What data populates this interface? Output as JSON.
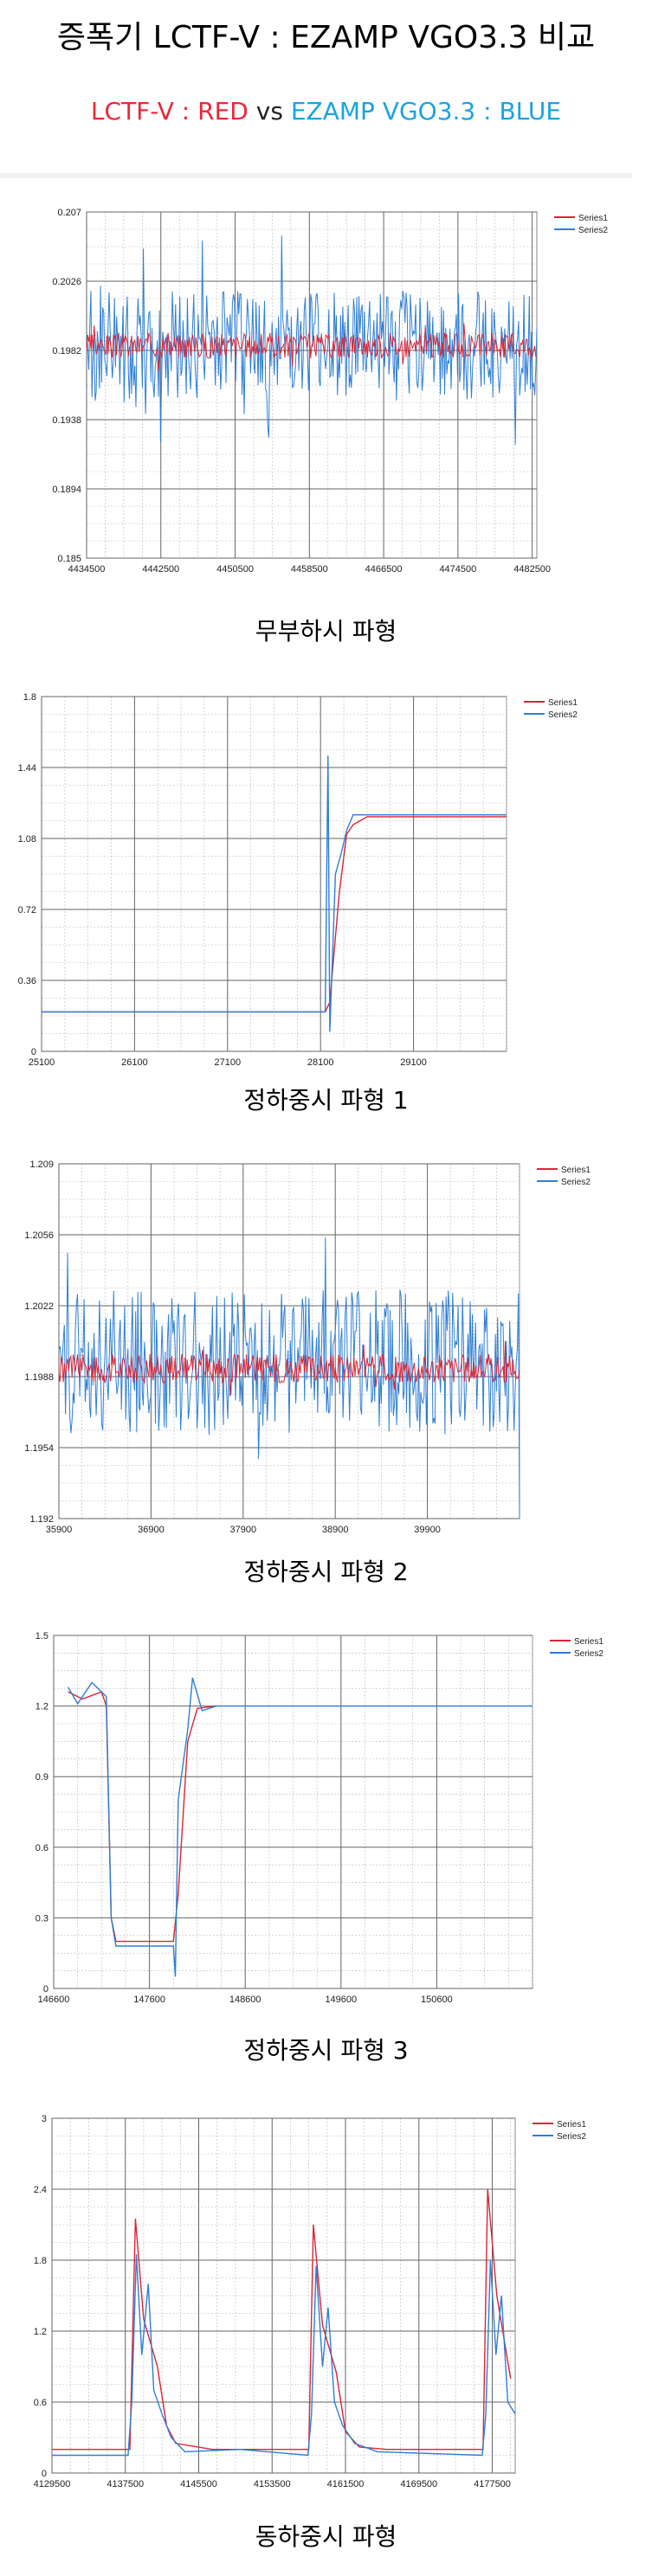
{
  "title": "증폭기 LCTF-V : EZAMP VGO3.3 비교",
  "legend_line": {
    "red_label": "LCTF-V : RED",
    "vs": "vs",
    "blue_label": "EZAMP VGO3.3 : BLUE"
  },
  "colors": {
    "series1": "#dc2434",
    "series2": "#2e7fd6",
    "grid": "#b9b9b9",
    "grid_major": "#666666"
  },
  "charts": [
    {
      "caption": "무부하시 파형",
      "chart_data": {
        "type": "line",
        "legend": [
          "Series1",
          "Series2"
        ],
        "legend_position": "top-right",
        "yticks": [
          "0.207",
          "0.2026",
          "0.1982",
          "0.1938",
          "0.1894",
          "0.185"
        ],
        "xticks": [
          "4434500",
          "4442500",
          "4450500",
          "4458500",
          "4466500",
          "4474500",
          "4482500"
        ],
        "xlim": [
          4434500,
          4483000
        ],
        "ylim": [
          0.185,
          0.207
        ],
        "series": [
          {
            "name": "Series1",
            "kind": "noise",
            "base": 0.1985,
            "amp": 0.0008
          },
          {
            "name": "Series2",
            "kind": "noise",
            "base": 0.1985,
            "amp": 0.0035
          }
        ]
      }
    },
    {
      "caption": "정하중시 파형 1",
      "chart_data": {
        "type": "line",
        "legend": [
          "Series1",
          "Series2"
        ],
        "legend_position": "top-right",
        "yticks": [
          "1.8",
          "1.44",
          "1.08",
          "0.72",
          "0.36",
          "0"
        ],
        "xticks": [
          "25100",
          "26100",
          "27100",
          "28100",
          "29100"
        ],
        "xlim": [
          25100,
          30100
        ],
        "ylim": [
          0,
          1.8
        ],
        "series": [
          {
            "name": "Series1",
            "kind": "path",
            "points": [
              [
                25100,
                0.2
              ],
              [
                28150,
                0.2
              ],
              [
                28200,
                0.25
              ],
              [
                28300,
                0.8
              ],
              [
                28380,
                1.1
              ],
              [
                28450,
                1.15
              ],
              [
                28600,
                1.19
              ],
              [
                30100,
                1.19
              ]
            ]
          },
          {
            "name": "Series2",
            "kind": "path",
            "points": [
              [
                25100,
                0.2
              ],
              [
                28150,
                0.2
              ],
              [
                28180,
                1.5
              ],
              [
                28200,
                0.1
              ],
              [
                28260,
                0.9
              ],
              [
                28320,
                1.0
              ],
              [
                28380,
                1.12
              ],
              [
                28450,
                1.2
              ],
              [
                28600,
                1.2
              ],
              [
                30100,
                1.2
              ]
            ]
          }
        ]
      }
    },
    {
      "caption": "정하중시 파형 2",
      "chart_data": {
        "type": "line",
        "legend": [
          "Series1",
          "Series2"
        ],
        "legend_position": "top-right",
        "yticks": [
          "1.209",
          "1.2056",
          "1.2022",
          "1.1988",
          "1.1954",
          "1.192"
        ],
        "xticks": [
          "35900",
          "36900",
          "37900",
          "38900",
          "39900"
        ],
        "xlim": [
          35900,
          40900
        ],
        "ylim": [
          1.192,
          1.209
        ],
        "series": [
          {
            "name": "Series1",
            "kind": "noise",
            "base": 1.1992,
            "amp": 0.0007
          },
          {
            "name": "Series2",
            "kind": "noise",
            "base": 1.1995,
            "amp": 0.0035
          }
        ]
      }
    },
    {
      "caption": "정하중시 파형 3",
      "chart_data": {
        "type": "line",
        "legend": [
          "Series1",
          "Series2"
        ],
        "legend_position": "top-right",
        "yticks": [
          "1.5",
          "1.2",
          "0.9",
          "0.6",
          "0.3",
          "0"
        ],
        "xticks": [
          "146600",
          "147600",
          "148600",
          "149600",
          "150600"
        ],
        "xlim": [
          146600,
          151600
        ],
        "ylim": [
          0,
          1.5
        ],
        "series": [
          {
            "name": "Series1",
            "kind": "path",
            "points": [
              [
                146750,
                1.26
              ],
              [
                146900,
                1.23
              ],
              [
                147100,
                1.26
              ],
              [
                147150,
                1.2
              ],
              [
                147200,
                0.3
              ],
              [
                147250,
                0.2
              ],
              [
                147850,
                0.2
              ],
              [
                147900,
                0.4
              ],
              [
                148000,
                1.05
              ],
              [
                148100,
                1.19
              ],
              [
                148300,
                1.2
              ]
            ]
          },
          {
            "name": "Series2",
            "kind": "path",
            "points": [
              [
                146750,
                1.28
              ],
              [
                146850,
                1.21
              ],
              [
                147000,
                1.3
              ],
              [
                147150,
                1.24
              ],
              [
                147200,
                0.3
              ],
              [
                147250,
                0.18
              ],
              [
                147850,
                0.18
              ],
              [
                147870,
                0.05
              ],
              [
                147900,
                0.8
              ],
              [
                148000,
                1.1
              ],
              [
                148050,
                1.32
              ],
              [
                148150,
                1.18
              ],
              [
                148300,
                1.2
              ],
              [
                151600,
                1.2
              ]
            ]
          }
        ]
      }
    },
    {
      "caption": "동하중시 파형",
      "chart_data": {
        "type": "line",
        "legend": [
          "Series1",
          "Series2"
        ],
        "legend_position": "top-right",
        "yticks": [
          "3",
          "2.4",
          "1.8",
          "1.2",
          "0.6",
          "0"
        ],
        "xticks": [
          "4129500",
          "4137500",
          "4145500",
          "4153500",
          "4161500",
          "4169500",
          "4177500"
        ],
        "xlim": [
          4129500,
          4180000
        ],
        "ylim": [
          0,
          3
        ],
        "series": [
          {
            "name": "Series1",
            "kind": "path",
            "points": [
              [
                4129500,
                0.2
              ],
              [
                4138000,
                0.2
              ],
              [
                4138600,
                2.15
              ],
              [
                4139500,
                1.3
              ],
              [
                4141000,
                0.9
              ],
              [
                4142000,
                0.4
              ],
              [
                4143000,
                0.25
              ],
              [
                4147000,
                0.2
              ],
              [
                4157500,
                0.2
              ],
              [
                4158000,
                2.1
              ],
              [
                4159000,
                1.25
              ],
              [
                4160500,
                0.85
              ],
              [
                4161500,
                0.35
              ],
              [
                4163000,
                0.22
              ],
              [
                4166000,
                0.2
              ],
              [
                4176500,
                0.2
              ],
              [
                4177000,
                2.4
              ],
              [
                4178000,
                1.5
              ],
              [
                4179500,
                0.8
              ]
            ]
          },
          {
            "name": "Series2",
            "kind": "path",
            "points": [
              [
                4129500,
                0.15
              ],
              [
                4137800,
                0.15
              ],
              [
                4138200,
                0.6
              ],
              [
                4138700,
                1.85
              ],
              [
                4139300,
                1.0
              ],
              [
                4140000,
                1.6
              ],
              [
                4140600,
                0.7
              ],
              [
                4141500,
                0.5
              ],
              [
                4142500,
                0.3
              ],
              [
                4144000,
                0.18
              ],
              [
                4150000,
                0.2
              ],
              [
                4157400,
                0.15
              ],
              [
                4157800,
                0.5
              ],
              [
                4158300,
                1.75
              ],
              [
                4159000,
                0.9
              ],
              [
                4159600,
                1.4
              ],
              [
                4160300,
                0.6
              ],
              [
                4161200,
                0.4
              ],
              [
                4162500,
                0.25
              ],
              [
                4165000,
                0.18
              ],
              [
                4176400,
                0.15
              ],
              [
                4176800,
                0.5
              ],
              [
                4177300,
                1.8
              ],
              [
                4177900,
                1.0
              ],
              [
                4178500,
                1.5
              ],
              [
                4179200,
                0.6
              ],
              [
                4180000,
                0.5
              ]
            ]
          }
        ]
      }
    }
  ]
}
